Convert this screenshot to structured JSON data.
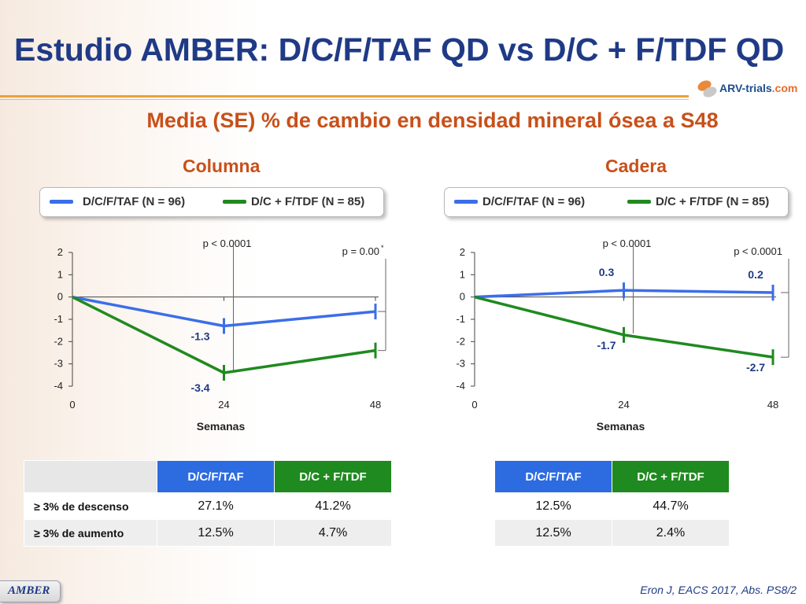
{
  "title": "Estudio AMBER: D/C/F/TAF QD vs D/C + F/TDF QD",
  "logo": {
    "name": "ARV-trials",
    "suffix": ".com"
  },
  "subtitle": "Media (SE) % de cambio en densidad mineral ósea a S48",
  "legend": {
    "taf": "D/C/F/TAF (N = 96)",
    "tdf": "D/C + F/TDF (N = 85)"
  },
  "colors": {
    "taf": "#3b6ee8",
    "tdf": "#1f8a1f",
    "title": "#1f3a86",
    "accent": "#c8501a"
  },
  "chart_data": [
    {
      "type": "line",
      "title": "Columna",
      "xlabel": "Semanas",
      "ylabel": "",
      "x": [
        0,
        24,
        48
      ],
      "xticks": [
        "0",
        "24",
        "48"
      ],
      "yticks": [
        "2",
        "1",
        "0",
        "-1",
        "-2",
        "-3",
        "-4"
      ],
      "ylim": [
        -4,
        2
      ],
      "xlim": [
        0,
        48
      ],
      "legend": "top",
      "series": [
        {
          "name": "D/C/F/TAF (N = 96)",
          "key": "taf",
          "values": [
            0,
            -1.3,
            -0.65
          ],
          "labels": [
            "",
            "-1.3",
            ""
          ]
        },
        {
          "name": "D/C + F/TDF (N = 85)",
          "key": "tdf",
          "values": [
            0,
            -3.4,
            -2.4
          ],
          "labels": [
            "",
            "-3.4",
            ""
          ]
        }
      ],
      "annotations": [
        {
          "text": "p < 0.0001",
          "x": 24
        },
        {
          "text": "p = 0.00",
          "sup": "*",
          "x": 48
        }
      ]
    },
    {
      "type": "line",
      "title": "Cadera",
      "xlabel": "Semanas",
      "ylabel": "",
      "x": [
        0,
        24,
        48
      ],
      "xticks": [
        "0",
        "24",
        "48"
      ],
      "yticks": [
        "2",
        "1",
        "0",
        "-1",
        "-2",
        "-3",
        "-4"
      ],
      "ylim": [
        -4,
        2
      ],
      "xlim": [
        0,
        48
      ],
      "legend": "top",
      "series": [
        {
          "name": "D/C/F/TAF (N = 96)",
          "key": "taf",
          "values": [
            0,
            0.3,
            0.2
          ],
          "labels": [
            "",
            "0.3",
            "0.2"
          ]
        },
        {
          "name": "D/C + F/TDF (N = 85)",
          "key": "tdf",
          "values": [
            0,
            -1.7,
            -2.7
          ],
          "labels": [
            "",
            "-1.7",
            "-2.7"
          ]
        }
      ],
      "annotations": [
        {
          "text": "p < 0.0001",
          "x": 24
        },
        {
          "text": "p < 0.0001",
          "sup": "",
          "x": 48
        }
      ]
    }
  ],
  "tables": {
    "left": {
      "headers": [
        "",
        "D/C/F/TAF",
        "D/C + F/TDF"
      ],
      "rows": [
        {
          "label": "≥ 3% de descenso",
          "taf": "27.1%",
          "tdf": "41.2%"
        },
        {
          "label": "≥ 3% de aumento",
          "taf": "12.5%",
          "tdf": "4.7%"
        }
      ]
    },
    "right": {
      "headers": [
        "D/C/F/TAF",
        "D/C + F/TDF"
      ],
      "rows": [
        {
          "taf": "12.5%",
          "tdf": "44.7%"
        },
        {
          "taf": "12.5%",
          "tdf": "2.4%"
        }
      ]
    }
  },
  "footer": {
    "tab": "AMBER",
    "citation": "Eron J, EACS 2017, Abs. PS8/2"
  }
}
